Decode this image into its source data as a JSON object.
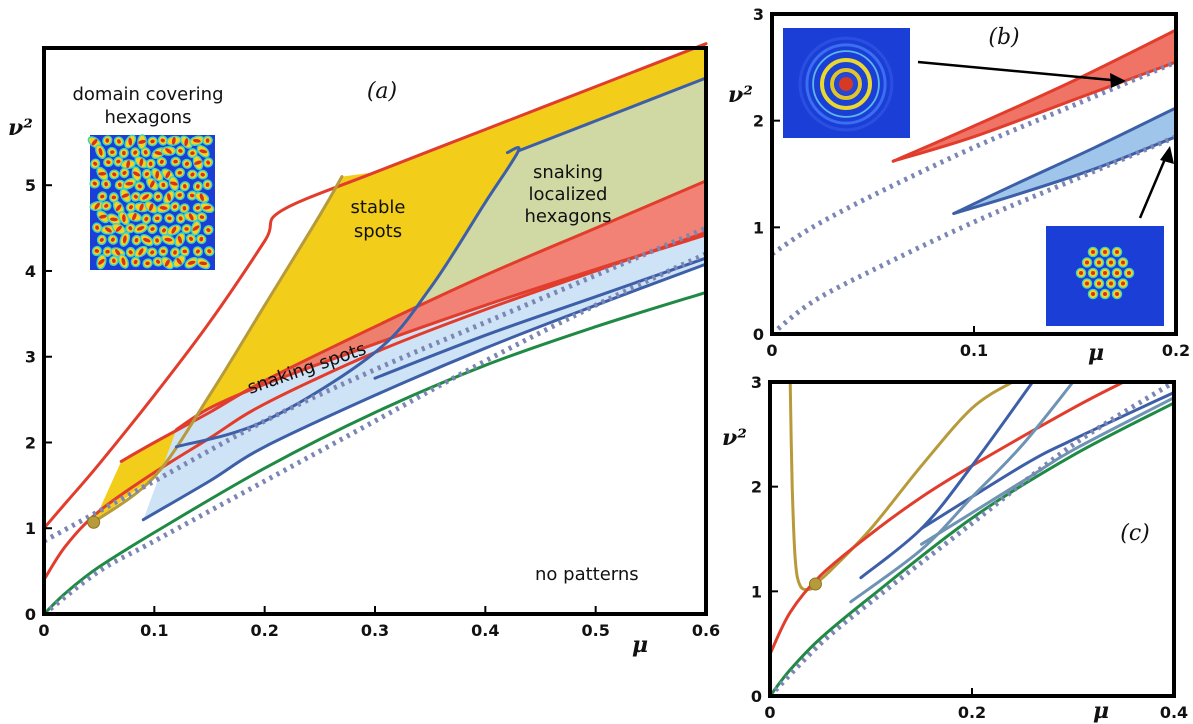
{
  "chart_data": [
    {
      "panel": "a",
      "panel_label": "(a)",
      "type": "line",
      "xlabel": "μ",
      "ylabel": "ν²",
      "xlim": [
        0,
        0.6
      ],
      "ylim": [
        0,
        6.6
      ],
      "x_ticks": [
        "0",
        "0.1",
        "0.2",
        "0.3",
        "0.4",
        "0.5",
        "0.6"
      ],
      "y_ticks": [
        "0",
        "1",
        "2",
        "3",
        "4",
        "5"
      ],
      "annotations": {
        "domain": [
          "domain covering",
          "hexagons"
        ],
        "stable": [
          "stable",
          "spots"
        ],
        "snaking_hex": [
          "snaking",
          "localized",
          "hexagons"
        ],
        "snaking_spots": "snaking spots",
        "no_patterns": "no patterns"
      },
      "colors": {
        "red": "#e23d2c",
        "yellow": "#f2cd1a",
        "gold": "#b79a3a",
        "olive_fill": "#cdd9ac",
        "blue": "#3d5fa8",
        "light_blue": "#cfe3f6",
        "green": "#1f8a43",
        "dotted": "#7b86b4"
      },
      "series": [
        {
          "color": "red",
          "x": [
            0,
            0.02,
            0.05,
            0.1,
            0.15,
            0.2,
            0.215,
            0.3,
            0.4,
            0.5,
            0.6
          ],
          "y": [
            1.0,
            1.3,
            1.75,
            2.55,
            3.4,
            4.35,
            4.7,
            5.15,
            5.65,
            6.15,
            6.65
          ]
        },
        {
          "color": "red",
          "x": [
            0.07,
            0.1,
            0.15,
            0.2,
            0.3,
            0.4,
            0.5,
            0.6
          ],
          "y": [
            1.78,
            2.0,
            2.35,
            2.72,
            3.35,
            3.95,
            4.5,
            5.05
          ]
        },
        {
          "color": "red",
          "x": [
            0.12,
            0.15,
            0.2,
            0.3,
            0.4,
            0.5,
            0.6
          ],
          "y": [
            2.15,
            2.4,
            2.68,
            3.15,
            3.6,
            4.02,
            4.42
          ]
        },
        {
          "color": "red",
          "x": [
            0,
            0.02,
            0.05,
            0.1,
            0.15,
            0.2,
            0.3,
            0.4,
            0.5,
            0.6
          ],
          "y": [
            0.4,
            0.8,
            1.2,
            1.65,
            2.05,
            2.45,
            3.05,
            3.55,
            4.0,
            4.45
          ]
        },
        {
          "color": "gold",
          "x": [
            0.045,
            0.1,
            0.15,
            0.2,
            0.25,
            0.27
          ],
          "y": [
            1.07,
            1.6,
            2.55,
            3.6,
            4.65,
            5.1
          ]
        },
        {
          "color": "blue",
          "x": [
            0.12,
            0.2,
            0.3,
            0.35,
            0.4,
            0.43,
            0.42
          ],
          "y": [
            1.95,
            2.25,
            3.05,
            3.8,
            4.8,
            5.4,
            5.38
          ]
        },
        {
          "color": "blue",
          "x": [
            0.09,
            0.15,
            0.2,
            0.3,
            0.4,
            0.5,
            0.6
          ],
          "y": [
            1.1,
            1.55,
            1.95,
            2.55,
            3.1,
            3.6,
            4.08
          ]
        },
        {
          "color": "blue",
          "x": [
            0.3,
            0.4,
            0.5,
            0.6
          ],
          "y": [
            2.75,
            3.25,
            3.7,
            4.15
          ]
        },
        {
          "color": "blue",
          "x": [
            0.43,
            0.5,
            0.6
          ],
          "y": [
            5.4,
            5.75,
            6.25
          ]
        },
        {
          "color": "green",
          "x": [
            0,
            0.02,
            0.05,
            0.1,
            0.2,
            0.3,
            0.4,
            0.5,
            0.6
          ],
          "y": [
            0,
            0.25,
            0.55,
            0.95,
            1.7,
            2.35,
            2.9,
            3.35,
            3.75
          ]
        },
        {
          "color": "dotted",
          "x": [
            0,
            0.05,
            0.1,
            0.2,
            0.3,
            0.4,
            0.5,
            0.6
          ],
          "y": [
            0.85,
            1.2,
            1.55,
            2.25,
            2.85,
            3.4,
            3.95,
            4.5
          ]
        },
        {
          "color": "dotted",
          "x": [
            0,
            0.05,
            0.1,
            0.2,
            0.3,
            0.4,
            0.5,
            0.6
          ],
          "y": [
            0,
            0.5,
            0.85,
            1.55,
            2.25,
            2.95,
            3.6,
            4.2
          ]
        }
      ],
      "points": [
        {
          "x": 0.045,
          "y": 1.07,
          "color": "gold"
        }
      ]
    },
    {
      "panel": "b",
      "panel_label": "(b)",
      "type": "line",
      "xlabel": "μ",
      "ylabel": "ν²",
      "xlim": [
        0,
        0.2
      ],
      "ylim": [
        0,
        3
      ],
      "x_ticks": [
        "0",
        "0.1",
        "0.2"
      ],
      "y_ticks": [
        "0",
        "1",
        "2",
        "3"
      ],
      "series": [
        {
          "color": "red",
          "x": [
            0.06,
            0.1,
            0.15,
            0.2
          ],
          "y": [
            1.62,
            1.95,
            2.38,
            2.85
          ]
        },
        {
          "color": "red",
          "x": [
            0.06,
            0.1,
            0.15,
            0.2
          ],
          "y": [
            1.62,
            1.85,
            2.2,
            2.55
          ]
        },
        {
          "color": "blue",
          "x": [
            0.09,
            0.12,
            0.16,
            0.2
          ],
          "y": [
            1.13,
            1.4,
            1.75,
            2.12
          ]
        },
        {
          "color": "blue",
          "x": [
            0.09,
            0.12,
            0.16,
            0.2
          ],
          "y": [
            1.13,
            1.3,
            1.55,
            1.85
          ]
        },
        {
          "color": "dotted",
          "x": [
            0,
            0.02,
            0.05,
            0.1,
            0.15,
            0.2
          ],
          "y": [
            0.75,
            1.0,
            1.3,
            1.75,
            2.15,
            2.55
          ]
        },
        {
          "color": "dotted",
          "x": [
            0,
            0.02,
            0.05,
            0.1,
            0.15,
            0.2
          ],
          "y": [
            0,
            0.3,
            0.6,
            1.05,
            1.45,
            1.85
          ]
        }
      ]
    },
    {
      "panel": "c",
      "panel_label": "(c)",
      "type": "line",
      "xlabel": "μ",
      "ylabel": "ν²",
      "xlim": [
        0,
        0.4
      ],
      "ylim": [
        0,
        3
      ],
      "x_ticks": [
        "0",
        "0.2",
        "0.4"
      ],
      "y_ticks": [
        "0",
        "1",
        "2",
        "3"
      ],
      "series": [
        {
          "color": "gold",
          "x": [
            0.02,
            0.022,
            0.025,
            0.03,
            0.04,
            0.045,
            0.06,
            0.1,
            0.15,
            0.2,
            0.24
          ],
          "y": [
            3.0,
            2.0,
            1.3,
            1.05,
            1.02,
            1.07,
            1.2,
            1.6,
            2.2,
            2.75,
            3.0
          ]
        },
        {
          "color": "red",
          "x": [
            0,
            0.02,
            0.05,
            0.1,
            0.15,
            0.2,
            0.3,
            0.35
          ],
          "y": [
            0.4,
            0.8,
            1.15,
            1.55,
            1.9,
            2.2,
            2.75,
            3.0
          ]
        },
        {
          "color": "blue",
          "x": [
            0.09,
            0.15,
            0.2,
            0.26
          ],
          "y": [
            1.13,
            1.6,
            2.2,
            3.0
          ]
        },
        {
          "color": "blue",
          "x": [
            0.15,
            0.25,
            0.3,
            0.4
          ],
          "y": [
            1.6,
            2.2,
            2.45,
            2.9
          ]
        },
        {
          "color": "steel",
          "x": [
            0.08,
            0.15,
            0.2,
            0.25,
            0.3
          ],
          "y": [
            0.9,
            1.4,
            1.9,
            2.4,
            3.0
          ]
        },
        {
          "color": "steel",
          "x": [
            0.15,
            0.25,
            0.3,
            0.4
          ],
          "y": [
            1.45,
            2.05,
            2.35,
            2.85
          ]
        },
        {
          "color": "green",
          "x": [
            0,
            0.02,
            0.05,
            0.1,
            0.2,
            0.3,
            0.4
          ],
          "y": [
            0,
            0.25,
            0.55,
            0.95,
            1.7,
            2.3,
            2.8
          ]
        },
        {
          "color": "dotted",
          "x": [
            0,
            0.05,
            0.1,
            0.2,
            0.3,
            0.4
          ],
          "y": [
            0,
            0.5,
            0.9,
            1.65,
            2.4,
            3.0
          ]
        }
      ],
      "points": [
        {
          "x": 0.045,
          "y": 1.07,
          "color": "gold"
        }
      ]
    }
  ],
  "colors": {
    "red": "#e23d2c",
    "gold": "#b79a3a",
    "blue": "#3d5fa8",
    "steel": "#6f93b4",
    "green": "#1f8a43",
    "dotted": "#7b86b4",
    "yellow": "#f2cd1a",
    "olive_fill": "#cdd9ac",
    "red_fill": "#ef7466",
    "light_blue": "#cfe3f6",
    "blue_fill": "#9fc6ea"
  }
}
